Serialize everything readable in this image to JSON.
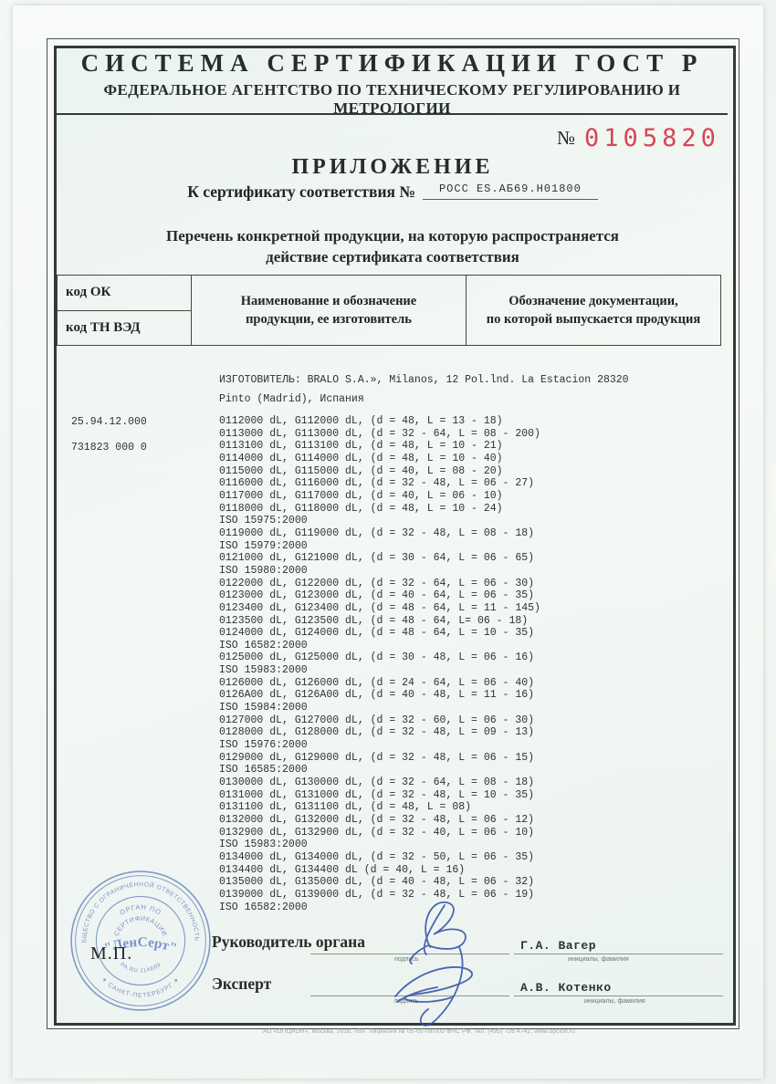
{
  "header": {
    "line1": "СИСТЕМА СЕРТИФИКАЦИИ ГОСТ Р",
    "line2": "ФЕДЕРАЛЬНОЕ АГЕНТСТВО ПО ТЕХНИЧЕСКОМУ РЕГУЛИРОВАНИЮ И МЕТРОЛОГИИ"
  },
  "doc_number": {
    "prefix": "№",
    "value": "0105820",
    "color": "#d94553"
  },
  "title": "ПРИЛОЖЕНИЕ",
  "cert_line": {
    "label": "К сертификату соответствия №",
    "value": "РОСС ES.АБ69.Н01800"
  },
  "subtitle": {
    "line1": "Перечень конкретной продукции,  на которую распространяется",
    "line2": "действие сертификата соответствия"
  },
  "table": {
    "col1_row1": "код ОК",
    "col1_row2": "код ТН ВЭД",
    "col2_line1": "Наименование и обозначение",
    "col2_line2": "продукции, ее изготовитель",
    "col3_line1": "Обозначение документации,",
    "col3_line2": "по которой выпускается продукция"
  },
  "codes": {
    "ok": "25.94.12.000",
    "tnved": "731823 000 0"
  },
  "manufacturer": {
    "line1": "ИЗГОТОВИТЕЛЬ: BRALO S.A.», Milanos, 12 Pol.lnd. La Estacion 28320",
    "line2": "Pinto (Madrid), Испания"
  },
  "products": [
    "0112000 dL, G112000 dL, (d = 48, L = 13 - 18)",
    "0113000 dL, G113000 dL, (d = 32 - 64, L = 08 - 200)",
    "0113100 dL, G113100 dL, (d = 48, L = 10 - 21)",
    "0114000 dL, G114000 dL, (d = 48, L = 10 - 40)",
    "0115000 dL, G115000 dL, (d = 40, L = 08 - 20)",
    "0116000 dL, G116000 dL, (d = 32 - 48, L = 06 - 27)",
    "0117000 dL, G117000 dL, (d = 40, L = 06 - 10)",
    "0118000 dL, G118000 dL, (d = 48, L = 10 - 24)",
    "ISO 15975:2000",
    "0119000 dL, G119000 dL, (d = 32 - 48, L = 08 - 18)",
    "ISO 15979:2000",
    "0121000 dL, G121000 dL, (d = 30 - 64, L = 06 - 65)",
    "ISO 15980:2000",
    "0122000 dL, G122000 dL, (d = 32 - 64, L = 06 - 30)",
    "0123000 dL, G123000 dL, (d = 40 - 64, L = 06 - 35)",
    "0123400 dL, G123400 dL, (d = 48 - 64, L = 11 - 145)",
    "0123500 dL, G123500 dL, (d = 48 - 64, L= 06 - 18)",
    "0124000 dL, G124000 dL, (d = 48 - 64, L = 10 - 35)",
    "ISO 16582:2000",
    "0125000 dL, G125000 dL, (d = 30 - 48, L = 06 - 16)",
    "ISO 15983:2000",
    "0126000 dL, G126000 dL, (d = 24 - 64, L = 06 - 40)",
    "0126A00 dL, G126A00 dL, (d = 40 - 48, L = 11 - 16)",
    "ISO 15984:2000",
    "0127000 dL, G127000 dL, (d = 32 - 60, L = 06 - 30)",
    "0128000 dL, G128000 dL, (d = 32 - 48, L = 09 - 13)",
    "ISO 15976:2000",
    "0129000 dL, G129000 dL, (d = 32 - 48, L = 06 - 15)",
    "ISO 16585:2000",
    "0130000 dL, G130000 dL, (d = 32 - 64, L = 08 - 18)",
    "0131000 dL, G131000 dL, (d = 32 - 48, L = 10 - 35)",
    "0131100 dL, G131100 dL, (d = 48, L = 08)",
    "0132000 dL, G132000 dL, (d = 32 - 48, L = 06 - 12)",
    "0132900 dL, G132900 dL, (d = 32 - 40, L = 06 - 10)",
    "ISO 15983:2000",
    "0134000 dL, G134000 dL, (d = 32 - 50, L = 06 - 35)",
    "0134400 dL, G134400 dL (d = 40, L = 16)",
    "0135000 dL, G135000 dL, (d = 40 - 48, L = 06 - 32)",
    "0139000 dL, G139000 dL, (d = 32 - 48, L = 06 - 19)",
    "ISO 16582:2000"
  ],
  "signatures": {
    "row1_label": "Руководитель органа",
    "row1_sign_caption": "подпись",
    "row1_name": "Г.А. Вагер",
    "row1_name_caption": "инициалы, фамилия",
    "row2_label": "Эксперт",
    "row2_sign_caption": "подпись",
    "row2_name": "А.В. Котенко",
    "row2_name_caption": "инициалы, фамилия"
  },
  "stamp": {
    "outer_top": "ОБЩЕСТВО С ОГРАНИЧЕННОЙ ОТВЕТСТВЕННОСТЬЮ",
    "outer_bottom": "✦ САНКТ-ПЕТЕРБУРГ ✦",
    "inner_top1": "ОРГАН ПО",
    "inner_top2": "СЕРТИФИКАЦИИ",
    "center": "\"ЛенСерт\"",
    "inner_bottom": "РА.RU.11АБ69",
    "color": "#5b7dbd"
  },
  "mp_mark": "М.П.",
  "footer": "АО «ОПЦИОН», Москва, 2016, «В».  Лицензия № 05-05-09/003 ФНС РФ, тел. (495) 726 4742, www.opcion.ru"
}
